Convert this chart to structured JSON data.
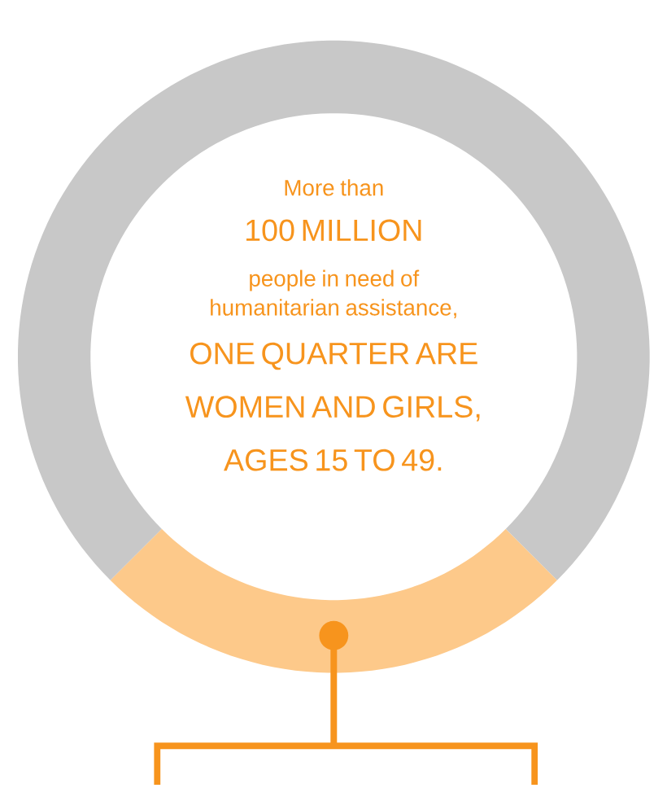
{
  "chart_data": {
    "type": "donut",
    "categories": [
      null,
      null
    ],
    "values": [
      25,
      75
    ],
    "colors": [
      "#fdc98a",
      "#c8c8c8"
    ],
    "annotations": [
      "More than",
      "100 MILLION",
      "people in need of humanitarian assistance,",
      "ONE QUARTER ARE WOMEN AND GIRLS, AGES 15 TO 49."
    ]
  }
}
